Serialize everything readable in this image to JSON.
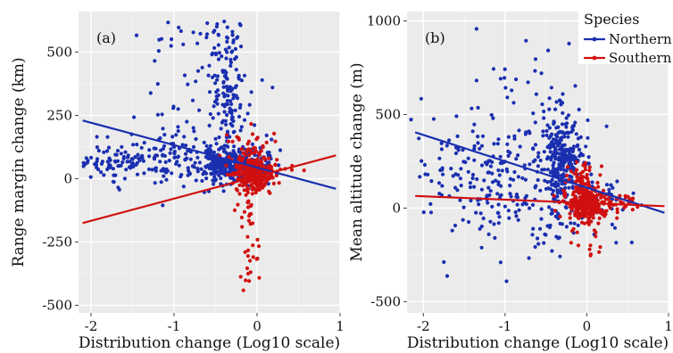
{
  "chart_data": [
    {
      "type": "scatter",
      "panel_label": "(a)",
      "xlabel": "Distribution change (Log10 scale)",
      "ylabel": "Range margin change (km)",
      "xlim": [
        -2.15,
        1.0
      ],
      "ylim": [
        -530,
        660
      ],
      "x_ticks": [
        -2,
        -1,
        0,
        1
      ],
      "x_tick_labels": [
        "-2",
        "-1",
        "0",
        "1"
      ],
      "y_ticks": [
        -500,
        -250,
        0,
        250,
        500
      ],
      "y_tick_labels": [
        "-500",
        "-250",
        "0",
        "250",
        "500"
      ],
      "grid": true,
      "background": "#ebebeb",
      "series": [
        {
          "name": "Northern",
          "color": "#1a2fb0",
          "trend": {
            "x": [
              -2.1,
              0.95
            ],
            "y": [
              230,
              -40
            ]
          },
          "clusters": [
            {
              "n": 320,
              "x_mean": -0.3,
              "x_sd": 0.2,
              "y_mean": 50,
              "y_sd": 35
            },
            {
              "n": 140,
              "x_mean": -1.0,
              "x_sd": 0.45,
              "y_mean": 90,
              "y_sd": 55
            },
            {
              "n": 60,
              "x_mean": -1.7,
              "x_sd": 0.25,
              "y_mean": 70,
              "y_sd": 30
            },
            {
              "n": 110,
              "x_mean": -0.35,
              "x_sd": 0.1,
              "y_mean": 330,
              "y_sd": 120
            },
            {
              "n": 45,
              "x_mean": -0.7,
              "x_sd": 0.35,
              "y_mean": 280,
              "y_sd": 150
            },
            {
              "n": 28,
              "x_mean": -0.4,
              "x_sd": 0.15,
              "y_mean": 555,
              "y_sd": 35
            },
            {
              "n": 12,
              "x_mean": -1.05,
              "x_sd": 0.15,
              "y_mean": 560,
              "y_sd": 40
            }
          ]
        },
        {
          "name": "Southern",
          "color": "#d01010",
          "trend": {
            "x": [
              -2.1,
              0.95
            ],
            "y": [
              -175,
              92
            ]
          },
          "clusters": [
            {
              "n": 260,
              "x_mean": -0.05,
              "x_sd": 0.12,
              "y_mean": 25,
              "y_sd": 35
            },
            {
              "n": 40,
              "x_mean": -0.1,
              "x_sd": 0.15,
              "y_mean": 120,
              "y_sd": 45
            },
            {
              "n": 35,
              "x_mean": -0.1,
              "x_sd": 0.08,
              "y_mean": -140,
              "y_sd": 90
            },
            {
              "n": 8,
              "x_mean": -0.15,
              "x_sd": 0.06,
              "y_mean": -380,
              "y_sd": 50
            },
            {
              "n": 12,
              "x_mean": 0.25,
              "x_sd": 0.15,
              "y_mean": 10,
              "y_sd": 40
            }
          ]
        }
      ]
    },
    {
      "type": "scatter",
      "panel_label": "(b)",
      "xlabel": "Distribution change (Log10 scale)",
      "ylabel": "Mean altitude change (m)",
      "xlim": [
        -2.2,
        1.0
      ],
      "ylim": [
        -560,
        1050
      ],
      "x_ticks": [
        -2,
        -1,
        0,
        1
      ],
      "x_tick_labels": [
        "-2",
        "-1",
        "0",
        "1"
      ],
      "y_ticks": [
        -500,
        0,
        500,
        1000
      ],
      "y_tick_labels": [
        "-500",
        "0",
        "500",
        "1000"
      ],
      "grid": true,
      "background": "#ebebeb",
      "legend": {
        "title": "Species",
        "position": "top-right"
      },
      "series": [
        {
          "name": "Northern",
          "color": "#1a2fb0",
          "trend": {
            "x": [
              -2.1,
              0.95
            ],
            "y": [
              405,
              -25
            ]
          },
          "clusters": [
            {
              "n": 260,
              "x_mean": -0.3,
              "x_sd": 0.12,
              "y_mean": 260,
              "y_sd": 120
            },
            {
              "n": 200,
              "x_mean": -0.9,
              "x_sd": 0.45,
              "y_mean": 220,
              "y_sd": 200
            },
            {
              "n": 50,
              "x_mean": -1.6,
              "x_sd": 0.3,
              "y_mean": 150,
              "y_sd": 220
            },
            {
              "n": 40,
              "x_mean": -0.5,
              "x_sd": 0.4,
              "y_mean": -80,
              "y_sd": 90
            },
            {
              "n": 30,
              "x_mean": 0.1,
              "x_sd": 0.25,
              "y_mean": 60,
              "y_sd": 60
            },
            {
              "n": 15,
              "x_mean": -0.7,
              "x_sd": 0.3,
              "y_mean": 650,
              "y_sd": 120
            }
          ]
        },
        {
          "name": "Southern",
          "color": "#d01010",
          "trend": {
            "x": [
              -2.1,
              0.95
            ],
            "y": [
              65,
              10
            ]
          },
          "clusters": [
            {
              "n": 300,
              "x_mean": 0.0,
              "x_sd": 0.12,
              "y_mean": 20,
              "y_sd": 45
            },
            {
              "n": 60,
              "x_mean": -0.05,
              "x_sd": 0.1,
              "y_mean": 150,
              "y_sd": 60
            },
            {
              "n": 30,
              "x_mean": 0.45,
              "x_sd": 0.15,
              "y_mean": 40,
              "y_sd": 30
            },
            {
              "n": 10,
              "x_mean": 0.05,
              "x_sd": 0.1,
              "y_mean": -180,
              "y_sd": 50
            }
          ]
        }
      ]
    }
  ]
}
